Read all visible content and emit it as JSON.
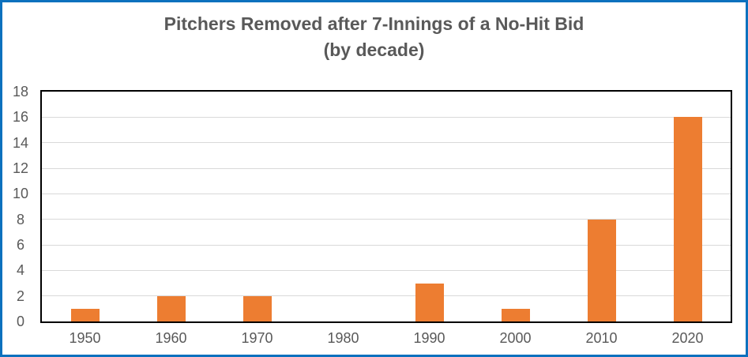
{
  "window": {
    "background": "#FFFFFF",
    "frame_border_color": "#0C71BE"
  },
  "chart_data": {
    "type": "bar",
    "title": "Pitchers Removed after 7-Innings of a No-Hit Bid",
    "subtitle": "(by decade)",
    "categories": [
      "1950",
      "1960",
      "1970",
      "1980",
      "1990",
      "2000",
      "2010",
      "2020"
    ],
    "values": [
      1,
      2,
      2,
      0,
      3,
      1,
      8,
      16
    ],
    "yticks": [
      0,
      2,
      4,
      6,
      8,
      10,
      12,
      14,
      16,
      18
    ],
    "ylim": [
      0,
      18
    ],
    "xlabel": "",
    "ylabel": "",
    "grid": true,
    "legend": "none",
    "colors": {
      "bar": "#ED7D31",
      "gridline": "#D9D9D9",
      "plot_border": "#000000",
      "text": "#595959",
      "frame": "#0C71BE"
    }
  }
}
